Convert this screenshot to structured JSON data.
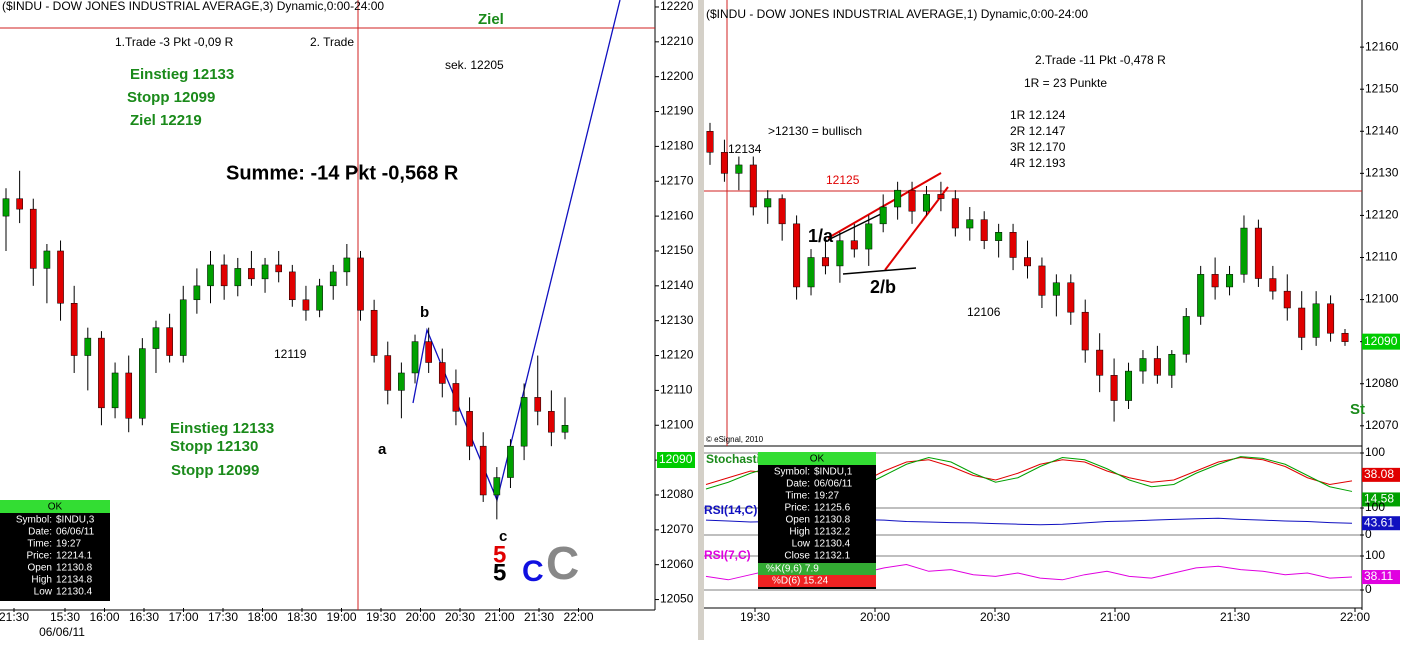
{
  "chart_data": [
    {
      "type": "candlestick",
      "title": "($INDU - DOW JONES INDUSTRIAL AVERAGE,3) Dynamic,0:00-24:00",
      "ylim": [
        12047,
        12222
      ],
      "yticks": [
        12220,
        12210,
        12200,
        12190,
        12180,
        12170,
        12160,
        12150,
        12140,
        12130,
        12120,
        12110,
        12100,
        12090,
        12080,
        12070,
        12060,
        12050
      ],
      "x_labels": [
        "21:30",
        "15:30",
        "16:00",
        "16:30",
        "17:00",
        "17:30",
        "18:00",
        "18:30",
        "19:00",
        "19:30",
        "20:00",
        "20:30",
        "21:00",
        "21:30",
        "22:00"
      ],
      "date_label": "06/06/11",
      "up_color": "#00a000",
      "down_color": "#e00000",
      "last_price": 12090,
      "ohlc": [
        [
          12160,
          12168,
          12150,
          12165
        ],
        [
          12165,
          12173,
          12158,
          12162
        ],
        [
          12162,
          12165,
          12140,
          12145
        ],
        [
          12145,
          12152,
          12135,
          12150
        ],
        [
          12150,
          12153,
          12130,
          12135
        ],
        [
          12135,
          12140,
          12115,
          12120
        ],
        [
          12120,
          12128,
          12110,
          12125
        ],
        [
          12125,
          12127,
          12100,
          12105
        ],
        [
          12105,
          12118,
          12102,
          12115
        ],
        [
          12115,
          12120,
          12098,
          12102
        ],
        [
          12102,
          12125,
          12100,
          12122
        ],
        [
          12122,
          12130,
          12115,
          12128
        ],
        [
          12128,
          12132,
          12118,
          12120
        ],
        [
          12120,
          12140,
          12118,
          12136
        ],
        [
          12136,
          12145,
          12132,
          12140
        ],
        [
          12140,
          12150,
          12135,
          12146
        ],
        [
          12146,
          12149,
          12136,
          12140
        ],
        [
          12140,
          12148,
          12137,
          12145
        ],
        [
          12145,
          12150,
          12140,
          12142
        ],
        [
          12142,
          12148,
          12138,
          12146
        ],
        [
          12146,
          12150,
          12141,
          12144
        ],
        [
          12144,
          12146,
          12134,
          12136
        ],
        [
          12136,
          12140,
          12130,
          12133
        ],
        [
          12133,
          12142,
          12131,
          12140
        ],
        [
          12140,
          12146,
          12136,
          12144
        ],
        [
          12144,
          12152,
          12140,
          12148
        ],
        [
          12148,
          12150,
          12130,
          12133
        ],
        [
          12133,
          12136,
          12118,
          12120
        ],
        [
          12120,
          12124,
          12106,
          12110
        ],
        [
          12110,
          12118,
          12102,
          12115
        ],
        [
          12115,
          12126,
          12112,
          12124
        ],
        [
          12124,
          12128,
          12115,
          12118
        ],
        [
          12118,
          12122,
          12108,
          12112
        ],
        [
          12112,
          12116,
          12100,
          12104
        ],
        [
          12104,
          12108,
          12090,
          12094
        ],
        [
          12094,
          12098,
          12078,
          12080
        ],
        [
          12080,
          12088,
          12073,
          12085
        ],
        [
          12085,
          12096,
          12082,
          12094
        ],
        [
          12094,
          12112,
          12090,
          12108
        ],
        [
          12108,
          12120,
          12100,
          12104
        ],
        [
          12104,
          12110,
          12094,
          12098
        ],
        [
          12098,
          12108,
          12096,
          12100
        ]
      ],
      "annotations": [
        {
          "text": "Ziel",
          "color": "#1a8a1a"
        },
        {
          "text": "1.Trade -3 Pkt -0,09 R",
          "color": "#000000"
        },
        {
          "text": "2. Trade",
          "color": "#000000"
        },
        {
          "text": "sek. 12205",
          "color": "#000000"
        },
        {
          "text": "Einstieg 12133",
          "color": "#1a8a1a"
        },
        {
          "text": "Stopp 12099",
          "color": "#1a8a1a"
        },
        {
          "text": "Ziel 12219",
          "color": "#1a8a1a"
        },
        {
          "text": "Summe: -14 Pkt -0,568 R",
          "color": "#000000"
        },
        {
          "text": "12119",
          "color": "#000000"
        },
        {
          "text": "Einstieg 12133",
          "color": "#1a8a1a"
        },
        {
          "text": "Stopp 12130",
          "color": "#1a8a1a"
        },
        {
          "text": "Stopp 12099",
          "color": "#1a8a1a"
        },
        {
          "text": "a",
          "color": "#000000"
        },
        {
          "text": "b",
          "color": "#000000"
        },
        {
          "text": "c",
          "color": "#000000"
        },
        {
          "text": "5",
          "color": "#e00000"
        },
        {
          "text": "5",
          "color": "#000000"
        },
        {
          "text": "C",
          "color": "#1010e0"
        },
        {
          "text": "C",
          "color": "#888888"
        }
      ]
    },
    {
      "type": "candlestick",
      "title": "($INDU - DOW JONES INDUSTRIAL AVERAGE,1) Dynamic,0:00-24:00",
      "ylim": [
        12065.2,
        12171.2
      ],
      "yticks": [
        12160,
        12150,
        12140,
        12130,
        12120,
        12110,
        12100,
        12090,
        12080,
        12070
      ],
      "x_labels": [
        "19:30",
        "20:00",
        "20:30",
        "21:00",
        "21:30",
        "22:00"
      ],
      "up_color": "#00a000",
      "down_color": "#e00000",
      "last_price": 12090,
      "ohlc": [
        [
          12140,
          12142,
          12132,
          12135
        ],
        [
          12135,
          12138,
          12128,
          12130
        ],
        [
          12130,
          12134,
          12126,
          12132
        ],
        [
          12132,
          12134,
          12120,
          12122
        ],
        [
          12122,
          12126,
          12118,
          12124
        ],
        [
          12124,
          12125,
          12114,
          12118
        ],
        [
          12118,
          12120,
          12100,
          12103
        ],
        [
          12103,
          12112,
          12101,
          12110
        ],
        [
          12110,
          12114,
          12106,
          12108
        ],
        [
          12108,
          12116,
          12104,
          12114
        ],
        [
          12114,
          12118,
          12110,
          12112
        ],
        [
          12112,
          12120,
          12108,
          12118
        ],
        [
          12118,
          12125,
          12116,
          12122
        ],
        [
          12122,
          12128,
          12119,
          12126
        ],
        [
          12126,
          12128,
          12118,
          12121
        ],
        [
          12121,
          12127,
          12120,
          12125
        ],
        [
          12125,
          12128,
          12121,
          12124
        ],
        [
          12124,
          12126,
          12115,
          12117
        ],
        [
          12117,
          12122,
          12114,
          12119
        ],
        [
          12119,
          12121,
          12112,
          12114
        ],
        [
          12114,
          12118,
          12110,
          12116
        ],
        [
          12116,
          12118,
          12107,
          12110
        ],
        [
          12110,
          12114,
          12105,
          12108
        ],
        [
          12108,
          12110,
          12098,
          12101
        ],
        [
          12101,
          12106,
          12096,
          12104
        ],
        [
          12104,
          12106,
          12094,
          12097
        ],
        [
          12097,
          12100,
          12085,
          12088
        ],
        [
          12088,
          12092,
          12078,
          12082
        ],
        [
          12082,
          12086,
          12071,
          12076
        ],
        [
          12076,
          12085,
          12074,
          12083
        ],
        [
          12083,
          12088,
          12080,
          12086
        ],
        [
          12086,
          12089,
          12080,
          12082
        ],
        [
          12082,
          12088,
          12079,
          12087
        ],
        [
          12087,
          12098,
          12085,
          12096
        ],
        [
          12096,
          12108,
          12094,
          12106
        ],
        [
          12106,
          12110,
          12100,
          12103
        ],
        [
          12103,
          12108,
          12101,
          12106
        ],
        [
          12106,
          12120,
          12104,
          12117
        ],
        [
          12117,
          12119,
          12103,
          12105
        ],
        [
          12105,
          12108,
          12100,
          12102
        ],
        [
          12102,
          12106,
          12095,
          12098
        ],
        [
          12098,
          12102,
          12088,
          12091
        ],
        [
          12091,
          12102,
          12089,
          12099
        ],
        [
          12099,
          12101,
          12090,
          12092
        ],
        [
          12092,
          12093,
          12089,
          12090
        ]
      ],
      "annotations": [
        {
          "text": "2.Trade -11 Pkt -0,478 R",
          "color": "#000000"
        },
        {
          "text": "1R =    23 Punkte",
          "color": "#000000"
        },
        {
          "text": "1R    12.124",
          "color": "#000000"
        },
        {
          "text": "2R    12.147",
          "color": "#000000"
        },
        {
          "text": "3R    12.170",
          "color": "#000000"
        },
        {
          "text": "4R    12.193",
          "color": "#000000"
        },
        {
          "text": ">12130 = bullisch",
          "color": "#000000"
        },
        {
          "text": "12134",
          "color": "#000000"
        },
        {
          "text": "12125",
          "color": "#e00000"
        },
        {
          "text": "1/a",
          "color": "#000000"
        },
        {
          "text": "2/b",
          "color": "#000000"
        },
        {
          "text": "12106",
          "color": "#000000"
        },
        {
          "text": "© eSignal, 2010",
          "color": "#000000"
        },
        {
          "text": "St",
          "color": "#1a8a1a"
        }
      ]
    },
    {
      "type": "line",
      "title": "Stochastic",
      "title_color": "#1a8a1a",
      "ylim": [
        0,
        100
      ],
      "yticks": [
        100
      ],
      "series": [
        {
          "color": "#e00000",
          "values": [
            30,
            45,
            60,
            55,
            40,
            25,
            20,
            35,
            60,
            80,
            85,
            70,
            50,
            40,
            55,
            75,
            85,
            80,
            60,
            45,
            35,
            40,
            60,
            80,
            90,
            85,
            70,
            45,
            30,
            38.08
          ],
          "value_label": "38.08"
        },
        {
          "color": "#00a000",
          "values": [
            20,
            35,
            55,
            70,
            55,
            30,
            15,
            25,
            50,
            75,
            90,
            80,
            55,
            35,
            45,
            70,
            90,
            85,
            65,
            40,
            25,
            30,
            55,
            75,
            92,
            88,
            75,
            50,
            25,
            14.58
          ],
          "value_label": "14.58"
        }
      ]
    },
    {
      "type": "line",
      "title": "RSI(14,C)",
      "title_color": "#1010c0",
      "ylim": [
        0,
        100
      ],
      "yticks": [
        100,
        0
      ],
      "series": [
        {
          "color": "#1010c0",
          "values": [
            55,
            52,
            48,
            50,
            53,
            56,
            58,
            57,
            55,
            50,
            48,
            46,
            45,
            42,
            40,
            38,
            40,
            45,
            50,
            52,
            55,
            58,
            60,
            62,
            58,
            55,
            52,
            50,
            46,
            43.61
          ],
          "value_label": "43.61"
        }
      ]
    },
    {
      "type": "line",
      "title": "RSI(7,C)",
      "title_color": "#e000e0",
      "ylim": [
        0,
        100
      ],
      "yticks": [
        100,
        0
      ],
      "series": [
        {
          "color": "#e000e0",
          "values": [
            40,
            30,
            45,
            60,
            35,
            55,
            70,
            50,
            65,
            75,
            55,
            60,
            45,
            40,
            50,
            35,
            30,
            45,
            55,
            40,
            35,
            50,
            65,
            70,
            60,
            55,
            45,
            50,
            35,
            38.11
          ],
          "value_label": "38.11"
        }
      ]
    }
  ],
  "info_left": {
    "header": "OK",
    "rows": [
      [
        "Symbol:",
        "$INDU,3"
      ],
      [
        "Date:",
        "06/06/11"
      ],
      [
        "Time:",
        "19:27"
      ],
      [
        "Price:",
        "12214.1"
      ],
      [
        "Open",
        "12130.8"
      ],
      [
        "High",
        "12134.8"
      ],
      [
        "Low",
        "12130.4"
      ]
    ]
  },
  "info_right": {
    "header": "OK",
    "rows": [
      [
        "Symbol:",
        "$INDU,1"
      ],
      [
        "Date:",
        "06/06/11"
      ],
      [
        "Time:",
        "19:27"
      ],
      [
        "Price:",
        "12125.6"
      ],
      [
        "Open",
        "12130.8"
      ],
      [
        "High",
        "12132.2"
      ],
      [
        "Low",
        "12130.4"
      ],
      [
        "Close",
        "12132.1"
      ]
    ],
    "k_row": "%K(9,6)  7.9",
    "d_row": "%D(6)  15.24"
  }
}
